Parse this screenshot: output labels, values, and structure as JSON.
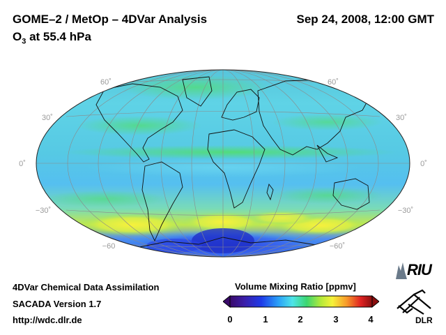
{
  "header": {
    "title": "GOME–2 / MetOp – 4DVar Analysis",
    "datetime": "Sep 24, 2008, 12:00 GMT",
    "subtitle_prefix": "O",
    "subtitle_sub": "3",
    "subtitle_suffix": " at 55.4 hPa"
  },
  "map": {
    "projection": "Hammer-Aitoff",
    "left_lat_labels": [
      "60˚",
      "30˚",
      "0˚",
      "−30˚",
      "−60"
    ],
    "right_lat_labels": [
      "60˚",
      "30˚",
      "0˚",
      "−30˚",
      "−60˚"
    ]
  },
  "colorbar": {
    "title": "Volume Mixing Ratio [ppmv]",
    "ticks": [
      "0",
      "1",
      "2",
      "3",
      "4"
    ]
  },
  "credits": {
    "line1": "4DVar Chemical Data Assimilation",
    "line2": "SACADA Version 1.7",
    "line3": "http://wdc.dlr.de"
  },
  "logos": {
    "riu": "RIU",
    "dlr": "DLR"
  }
}
